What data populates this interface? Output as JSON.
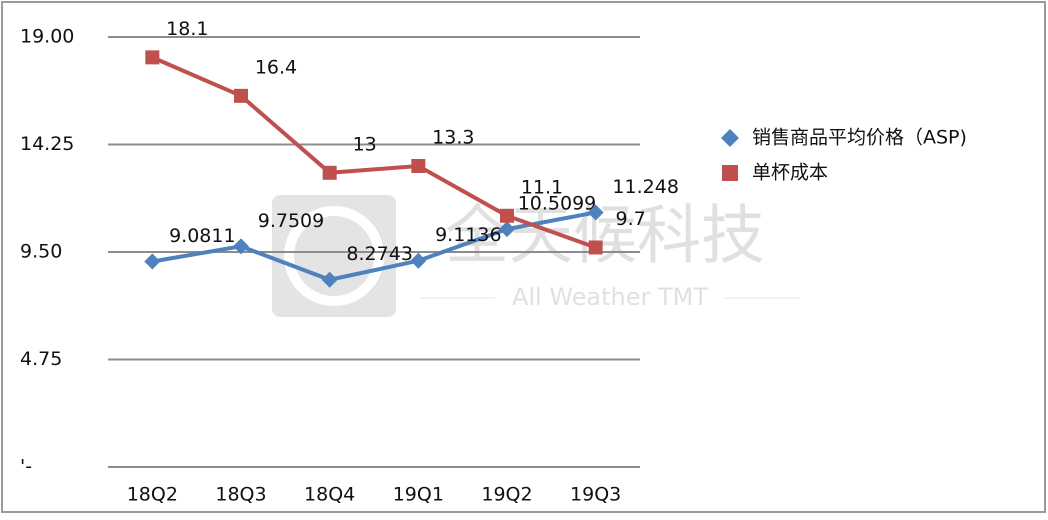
{
  "chart_data": {
    "type": "line",
    "categories": [
      "18Q2",
      "18Q3",
      "18Q4",
      "19Q1",
      "19Q2",
      "19Q3"
    ],
    "series": [
      {
        "name": "销售商品平均价格（ASP)",
        "color": "#4f81bd",
        "marker": "diamond",
        "values": [
          9.0811,
          9.7509,
          8.2743,
          9.1136,
          10.5099,
          11.248
        ]
      },
      {
        "name": "单杯成本",
        "color": "#c0504d",
        "marker": "square",
        "values": [
          18.1,
          16.4,
          13,
          13.3,
          11.1,
          9.7
        ]
      }
    ],
    "ylim": [
      0,
      19
    ],
    "yticks": [
      {
        "value": 0,
        "label": "'-"
      },
      {
        "value": 4.75,
        "label": "4.75"
      },
      {
        "value": 9.5,
        "label": "9.50"
      },
      {
        "value": 14.25,
        "label": "14.25"
      },
      {
        "value": 19,
        "label": "19.00"
      }
    ],
    "grid": true,
    "legend": "right",
    "watermark": {
      "title": "全天候科技",
      "subtitle": "All Weather TMT"
    }
  }
}
